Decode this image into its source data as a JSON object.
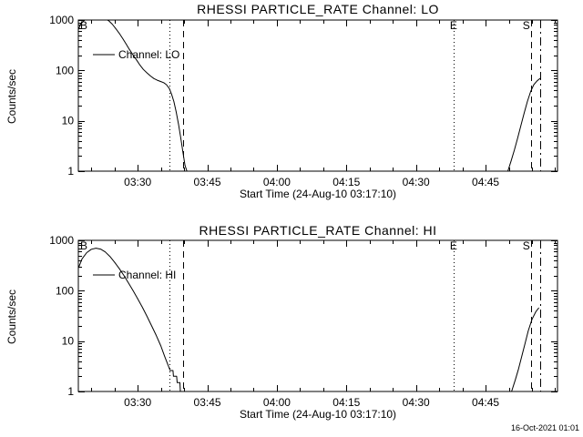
{
  "page": {
    "background": "#ffffff",
    "line_color": "#000000",
    "timestamp": "16-Oct-2021 01:01"
  },
  "chart_data": [
    {
      "type": "line",
      "title": "RHESSI PARTICLE_RATE Channel: LO",
      "xlabel": "Start Time (24-Aug-10 03:17:10)",
      "ylabel": "Counts/sec",
      "yscale": "log",
      "ylim": [
        1,
        1000
      ],
      "yticks": [
        1,
        10,
        100,
        1000
      ],
      "ytick_labels": [
        "1",
        "10",
        "100",
        "1000"
      ],
      "x_unit": "minutes after 03:00",
      "xlim": [
        17.2,
        120.5
      ],
      "xminor": 5,
      "xticks": [
        {
          "t": 30,
          "label": "03:30"
        },
        {
          "t": 45,
          "label": "03:45"
        },
        {
          "t": 60,
          "label": "04:00"
        },
        {
          "t": 75,
          "label": "04:15"
        },
        {
          "t": 90,
          "label": "04:30"
        },
        {
          "t": 105,
          "label": "04:45"
        }
      ],
      "legend": {
        "label": "Channel: LO"
      },
      "annotations": [
        {
          "t": 17.6,
          "label": "B"
        },
        {
          "t": 97.3,
          "label": "E"
        },
        {
          "t": 113.0,
          "label": "S"
        }
      ],
      "vlines": [
        {
          "t": 36.9,
          "style": "dotted"
        },
        {
          "t": 39.8,
          "style": "dashed"
        },
        {
          "t": 98.2,
          "style": "dotted"
        },
        {
          "t": 114.9,
          "style": "dashed"
        },
        {
          "t": 116.7,
          "style": "dashdot"
        }
      ],
      "series": [
        {
          "name": "Channel: LO",
          "segments": [
            [
              [
                17.2,
                650
              ],
              [
                17.7,
                820
              ],
              [
                18.3,
                960
              ],
              [
                19,
                1070
              ],
              [
                20,
                1140
              ],
              [
                21,
                1160
              ],
              [
                22,
                1130
              ],
              [
                23,
                1060
              ],
              [
                23.8,
                960
              ],
              [
                24.5,
                830
              ],
              [
                25.2,
                690
              ],
              [
                26,
                550
              ],
              [
                26.8,
                425
              ],
              [
                27.5,
                335
              ],
              [
                28.2,
                262
              ],
              [
                29,
                202
              ],
              [
                29.8,
                158
              ],
              [
                30.5,
                127
              ],
              [
                31.2,
                105
              ],
              [
                32,
                89
              ],
              [
                32.8,
                77
              ],
              [
                33.5,
                69
              ],
              [
                34.2,
                64
              ],
              [
                35,
                60
              ],
              [
                35.6,
                57
              ],
              [
                36.2,
                52
              ],
              [
                36.8,
                44
              ],
              [
                37.3,
                34
              ],
              [
                37.8,
                24
              ],
              [
                38.3,
                15
              ],
              [
                38.8,
                8.5
              ],
              [
                39.3,
                4.5
              ],
              [
                39.8,
                2.2
              ],
              [
                40.2,
                1.3
              ],
              [
                40.6,
                1
              ]
            ],
            [
              [
                109.8,
                1
              ],
              [
                110.5,
                1.6
              ],
              [
                111.2,
                2.6
              ],
              [
                111.9,
                4.5
              ],
              [
                112.6,
                8
              ],
              [
                113.3,
                14
              ],
              [
                114,
                24
              ],
              [
                114.7,
                38
              ],
              [
                115.4,
                52
              ],
              [
                116.1,
                62
              ],
              [
                116.8,
                70
              ]
            ]
          ]
        }
      ]
    },
    {
      "type": "line",
      "title": "RHESSI PARTICLE_RATE Channel: HI",
      "xlabel": "Start Time (24-Aug-10 03:17:10)",
      "ylabel": "Counts/sec",
      "yscale": "log",
      "ylim": [
        1,
        1000
      ],
      "yticks": [
        1,
        10,
        100,
        1000
      ],
      "ytick_labels": [
        "1",
        "10",
        "100",
        "1000"
      ],
      "x_unit": "minutes after 03:00",
      "xlim": [
        17.2,
        120.5
      ],
      "xminor": 5,
      "xticks": [
        {
          "t": 30,
          "label": "03:30"
        },
        {
          "t": 45,
          "label": "03:45"
        },
        {
          "t": 60,
          "label": "04:00"
        },
        {
          "t": 75,
          "label": "04:15"
        },
        {
          "t": 90,
          "label": "04:30"
        },
        {
          "t": 105,
          "label": "04:45"
        }
      ],
      "legend": {
        "label": "Channel: HI"
      },
      "annotations": [
        {
          "t": 17.6,
          "label": "B"
        },
        {
          "t": 97.3,
          "label": "E"
        },
        {
          "t": 113.0,
          "label": "S"
        }
      ],
      "vlines": [
        {
          "t": 36.9,
          "style": "dotted"
        },
        {
          "t": 39.8,
          "style": "dashed"
        },
        {
          "t": 98.2,
          "style": "dotted"
        },
        {
          "t": 114.9,
          "style": "dashed"
        },
        {
          "t": 116.7,
          "style": "dashdot"
        }
      ],
      "series": [
        {
          "name": "Channel: HI",
          "segments": [
            [
              [
                17.2,
                280
              ],
              [
                18,
                430
              ],
              [
                19,
                570
              ],
              [
                20,
                665
              ],
              [
                21,
                700
              ],
              [
                22,
                670
              ],
              [
                23,
                590
              ],
              [
                24,
                480
              ],
              [
                25,
                370
              ],
              [
                26,
                277
              ],
              [
                27,
                202
              ],
              [
                28,
                143
              ],
              [
                29,
                100
              ],
              [
                30,
                69
              ],
              [
                31,
                47
              ],
              [
                32,
                31
              ],
              [
                33,
                20
              ],
              [
                34,
                13
              ],
              [
                35,
                8
              ],
              [
                35.8,
                5
              ],
              [
                36.5,
                3.4
              ],
              [
                37,
                2.6
              ],
              [
                37.6,
                2.6
              ],
              [
                37.7,
                2
              ],
              [
                38.4,
                2
              ],
              [
                38.5,
                1.5
              ],
              [
                39.1,
                1.5
              ],
              [
                39.2,
                1
              ],
              [
                40.2,
                1
              ]
            ],
            [
              [
                110.6,
                1
              ],
              [
                111.4,
                1.7
              ],
              [
                112.1,
                2.8
              ],
              [
                112.8,
                5
              ],
              [
                113.5,
                9
              ],
              [
                114.2,
                16
              ],
              [
                115,
                27
              ],
              [
                115.8,
                38
              ],
              [
                116.5,
                46
              ]
            ]
          ]
        }
      ]
    }
  ]
}
